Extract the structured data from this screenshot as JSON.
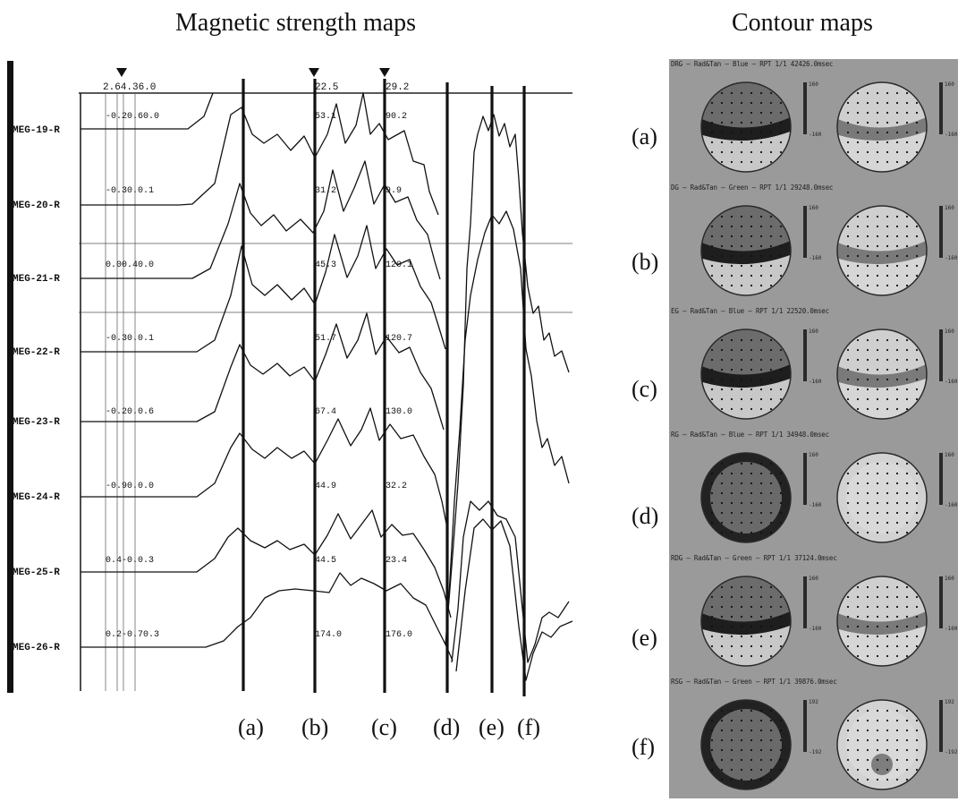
{
  "titles": {
    "left": "Magnetic strength maps",
    "right": "Contour maps"
  },
  "channels": [
    "MEG-19-R",
    "MEG-20-R",
    "MEG-21-R",
    "MEG-22-R",
    "MEG-23-R",
    "MEG-24-R",
    "MEG-25-R",
    "MEG-26-R"
  ],
  "top_readouts": [
    "2.64.36.0",
    "22.5",
    "29.2"
  ],
  "baseline_readouts": [
    "-0.20.60.0",
    "-0.30.0.1",
    "0.00.40.0",
    "-0.30.0.1",
    "-0.20.0.6",
    "-0.90.0.0",
    "0.4-0.0.3",
    "0.2-0.70.3"
  ],
  "column_b_readouts": [
    "53.1",
    "31.2",
    "45.3",
    "51.7",
    "67.4",
    "44.9",
    "44.5",
    "174.0"
  ],
  "column_c_readouts": [
    "90.2",
    "9.9",
    "120.1",
    "120.7",
    "130.0",
    "32.2",
    "23.4",
    "176.0"
  ],
  "marker_labels": [
    "(a)",
    "(b)",
    "(c)",
    "(d)",
    "(e)",
    "(f)"
  ],
  "contour_panels": [
    {
      "label": "(a)",
      "header": "DRG – Rad&Tan – Blue – RPT 1/1 42426.0msec",
      "scale_top": "160",
      "scale_bottom": "-160"
    },
    {
      "label": "(b)",
      "header": "DG – Rad&Tan – Green – RPT 1/1 29248.0msec",
      "scale_top": "160",
      "scale_bottom": "-160"
    },
    {
      "label": "(c)",
      "header": "EG – Rad&Tan – Blue – RPT 1/1 22520.0msec",
      "scale_top": "160",
      "scale_bottom": "-160"
    },
    {
      "label": "(d)",
      "header": "RG – Rad&Tan – Blue – RPT 1/1 34948.0msec",
      "scale_top": "160",
      "scale_bottom": "-160"
    },
    {
      "label": "(e)",
      "header": "RDG – Rad&Tan – Green – RPT 1/1 37124.0msec",
      "scale_top": "160",
      "scale_bottom": "-160"
    },
    {
      "label": "(f)",
      "header": "RSG – Rad&Tan – Green – RPT 1/1 39876.0msec",
      "scale_top": "192",
      "scale_bottom": "-192"
    }
  ]
}
